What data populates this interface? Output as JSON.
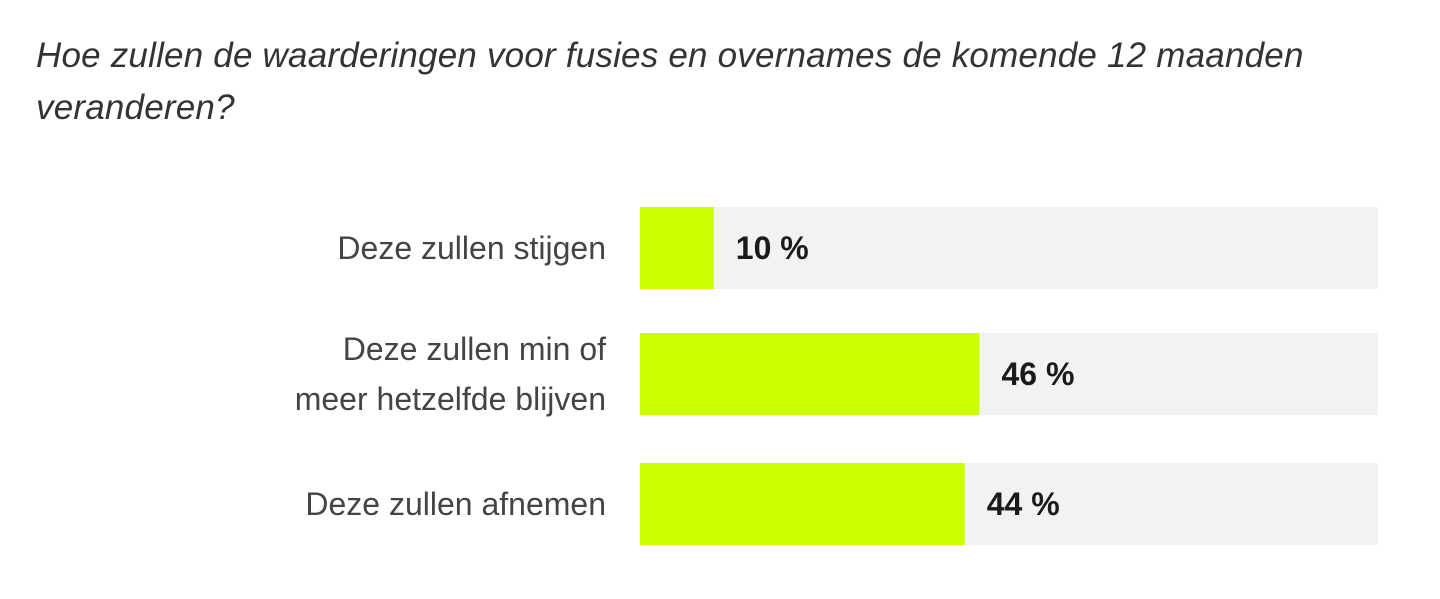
{
  "chart_data": {
    "type": "bar",
    "orientation": "horizontal",
    "title": "Hoe zullen de waarderingen voor fusies en overnames de komende 12 maanden veranderen?",
    "categories": [
      [
        "Deze zullen stijgen"
      ],
      [
        "Deze zullen min of",
        "meer hetzelfde blijven"
      ],
      [
        "Deze zullen afnemen"
      ]
    ],
    "values": [
      10,
      46,
      44
    ],
    "value_labels": [
      "10 %",
      "46 %",
      "44 %"
    ],
    "xlim": [
      0,
      100
    ],
    "bar_color": "#ccff00",
    "track_color": "#f2f2f2",
    "grid": false,
    "legend": "none"
  }
}
